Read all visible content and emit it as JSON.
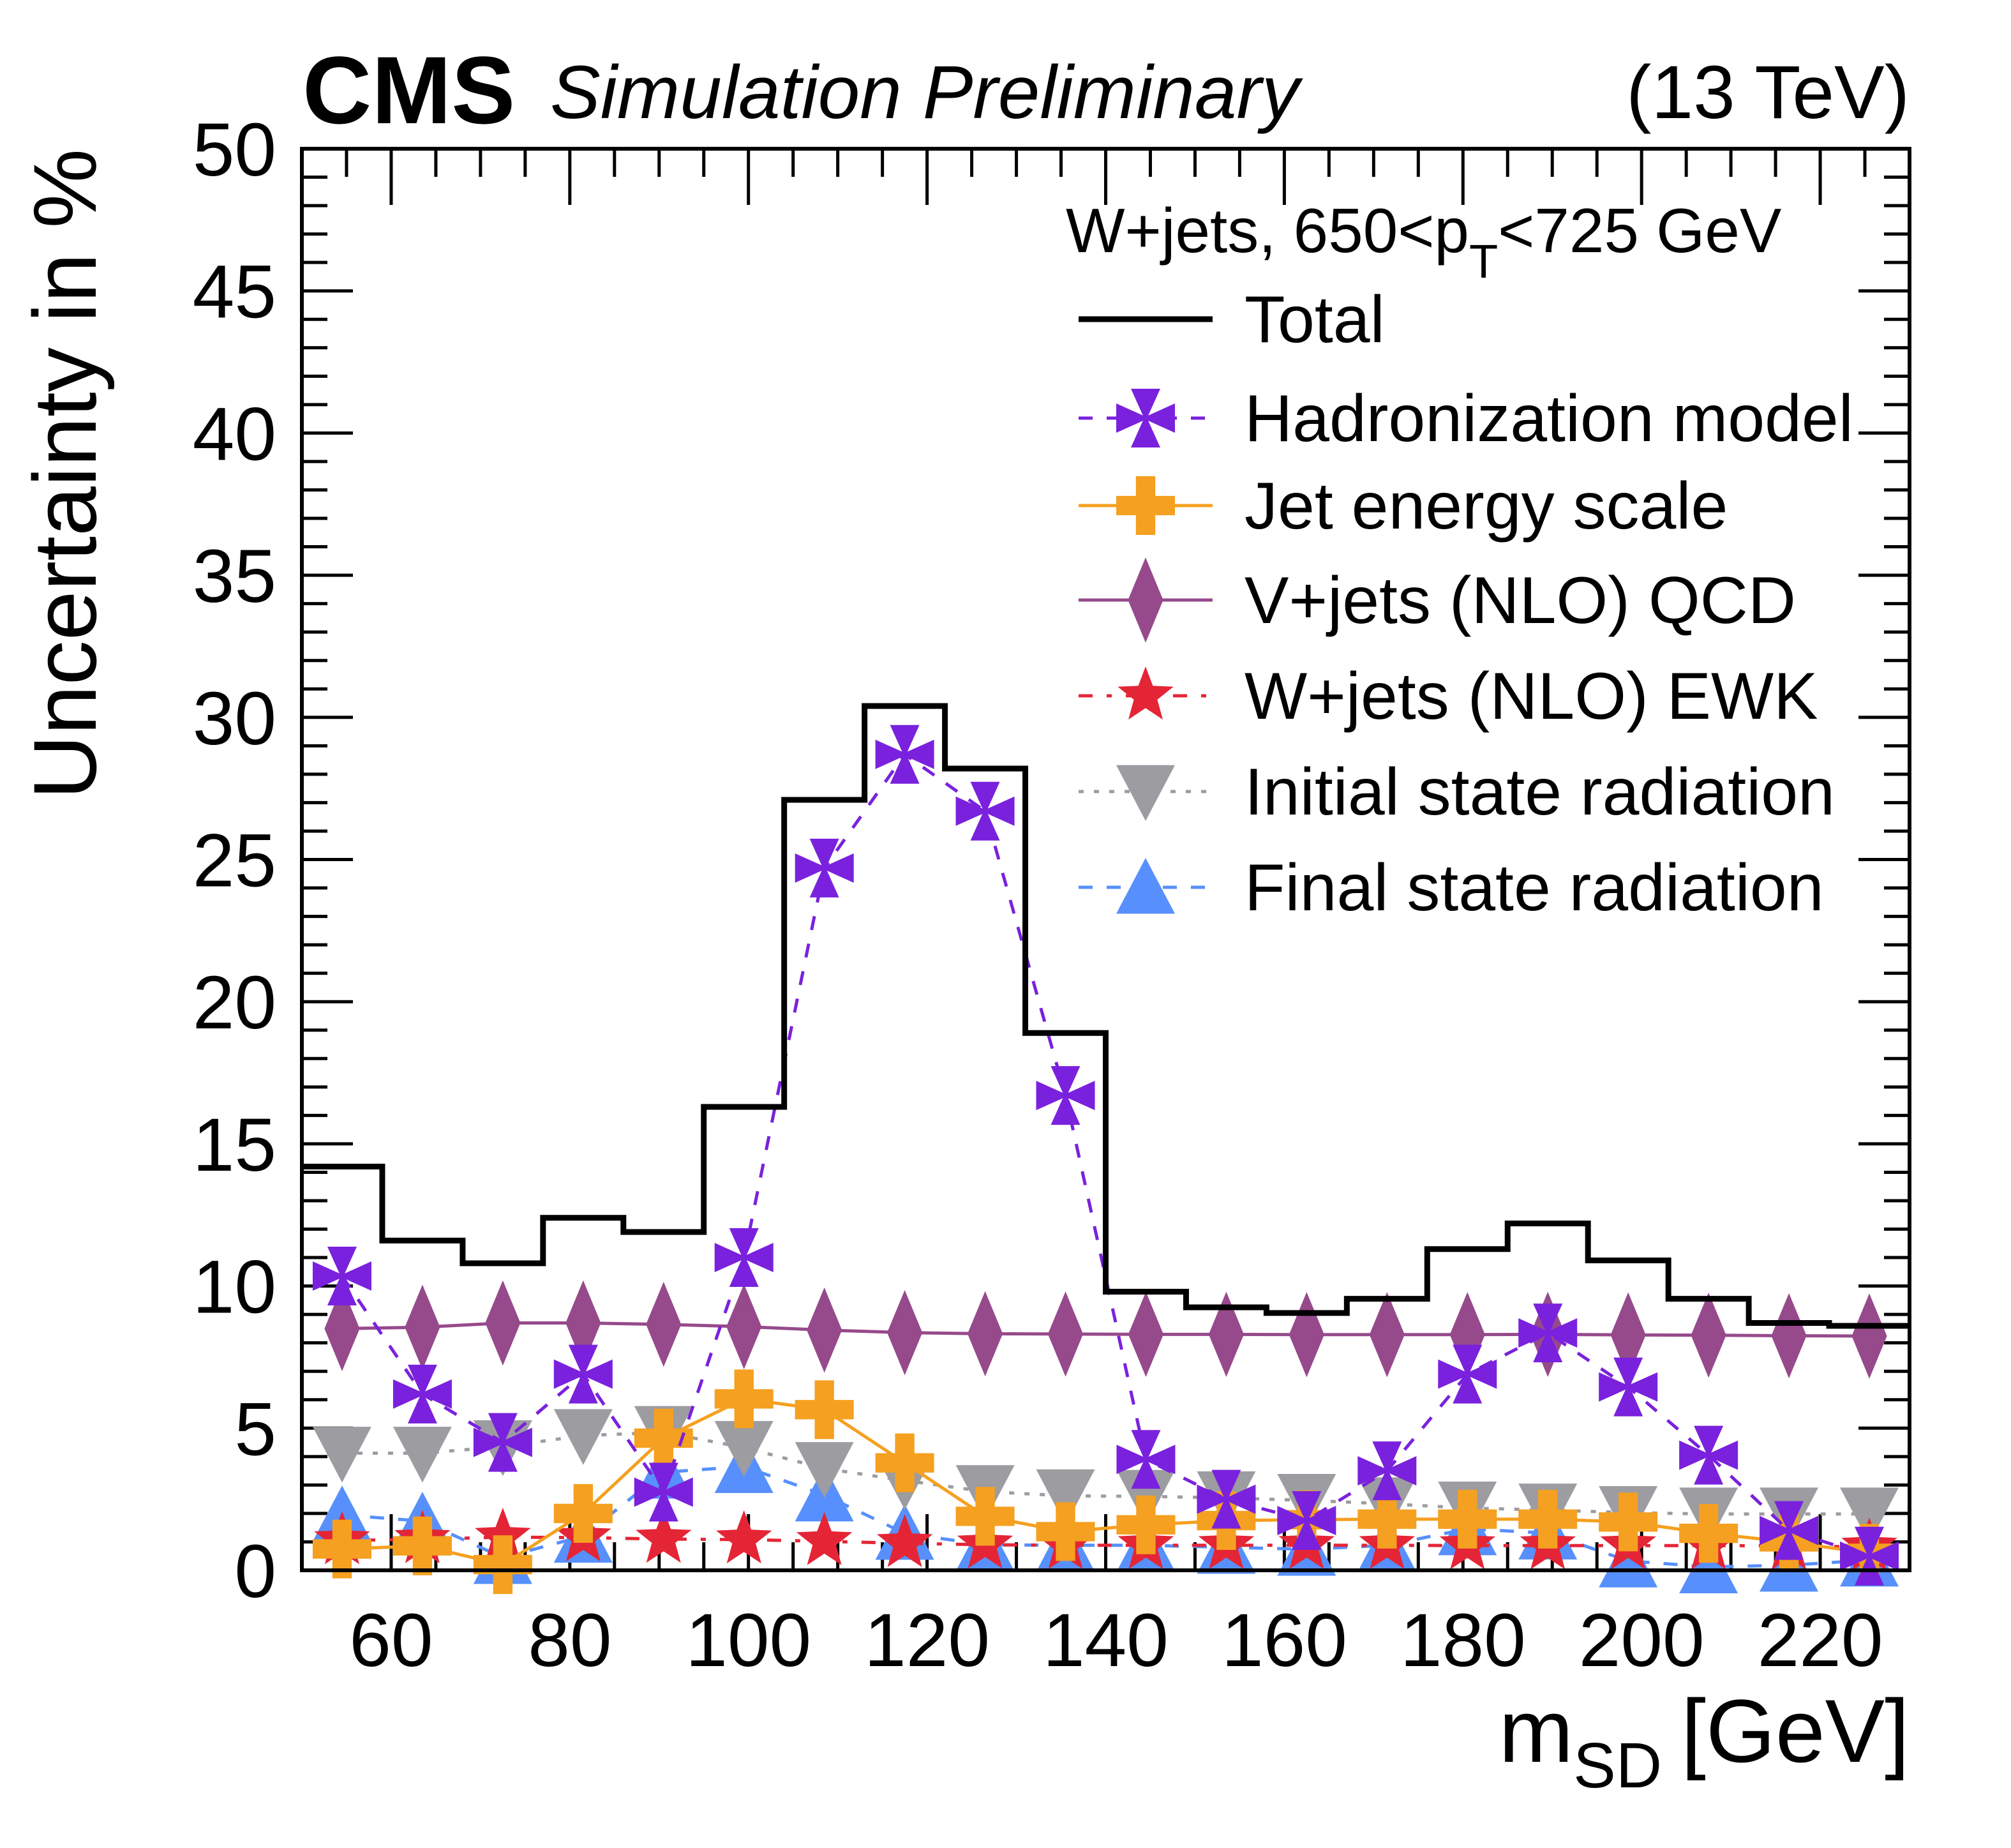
{
  "header": {
    "experiment": "CMS",
    "status": "Simulation Preliminary",
    "energy": "(13 TeV)"
  },
  "chart_data": {
    "type": "line",
    "title": "CMS Simulation Preliminary (13 TeV)",
    "xlabel": "m_SD [GeV]",
    "xlabel_main": "m",
    "xlabel_sub": "SD",
    "xlabel_unit": "[GeV]",
    "ylabel": "Uncertainty in %",
    "xlim": [
      50,
      230
    ],
    "ylim": [
      0,
      50
    ],
    "xticks": [
      60,
      80,
      100,
      120,
      140,
      160,
      180,
      200,
      220
    ],
    "yticks": [
      0,
      5,
      10,
      15,
      20,
      25,
      30,
      35,
      40,
      45,
      50
    ],
    "grid": false,
    "legend_position": "top-right",
    "legend_header": {
      "text_before": "W+jets, 650<p",
      "subscript": "T",
      "text_after": "<725 GeV"
    },
    "bin_edges": [
      50,
      59,
      68,
      77,
      86,
      95,
      104,
      113,
      122,
      131,
      140,
      149,
      158,
      167,
      176,
      185,
      194,
      203,
      212,
      221,
      230
    ],
    "x": [
      54.5,
      63.5,
      72.5,
      81.5,
      90.5,
      99.5,
      108.5,
      117.5,
      126.5,
      135.5,
      144.5,
      153.5,
      162.5,
      171.5,
      180.5,
      189.5,
      198.5,
      207.5,
      216.5,
      225.5
    ],
    "series": [
      {
        "name": "Total",
        "style": "histogram",
        "color": "#000000",
        "marker": "none",
        "line": "solid",
        "values": [
          14.2,
          11.6,
          10.8,
          12.4,
          11.9,
          16.3,
          27.1,
          30.4,
          28.2,
          18.9,
          9.8,
          9.25,
          9.05,
          9.55,
          11.3,
          12.2,
          10.9,
          9.55,
          8.7,
          8.6
        ]
      },
      {
        "name": "Hadronization model",
        "style": "markers+line",
        "color": "#7a21dd",
        "marker": "cross-x",
        "line": "dashed",
        "values": [
          10.35,
          6.2,
          4.5,
          6.9,
          2.75,
          11.0,
          24.7,
          28.7,
          26.7,
          16.7,
          3.9,
          2.5,
          1.75,
          3.5,
          6.9,
          8.35,
          6.45,
          4.05,
          1.4,
          0.5
        ]
      },
      {
        "name": "Jet energy scale",
        "style": "markers+line",
        "color": "#f5a020",
        "marker": "plus",
        "line": "solid",
        "values": [
          0.75,
          0.86,
          0.2,
          2.0,
          4.65,
          6.03,
          5.65,
          3.78,
          1.9,
          1.36,
          1.6,
          1.75,
          1.78,
          1.8,
          1.8,
          1.8,
          1.7,
          1.3,
          1.0,
          0.6
        ]
      },
      {
        "name": "V+jets (NLO) QCD",
        "style": "markers+line",
        "color": "#964a8b",
        "marker": "diamond",
        "line": "solid",
        "values": [
          8.5,
          8.55,
          8.7,
          8.7,
          8.65,
          8.57,
          8.45,
          8.36,
          8.32,
          8.31,
          8.3,
          8.3,
          8.29,
          8.29,
          8.29,
          8.3,
          8.28,
          8.27,
          8.25,
          8.24
        ]
      },
      {
        "name": "W+jets (NLO) EWK",
        "style": "markers+line",
        "color": "#e42536",
        "marker": "star",
        "line": "dash-dot",
        "values": [
          1.05,
          1.09,
          1.17,
          1.15,
          1.1,
          1.08,
          1.02,
          0.95,
          0.9,
          0.88,
          0.88,
          0.88,
          0.88,
          0.88,
          0.87,
          0.87,
          0.87,
          0.87,
          0.86,
          0.82
        ]
      },
      {
        "name": "Initial state radiation",
        "style": "markers+line",
        "color": "#9c9ca1",
        "marker": "triangle-down",
        "line": "dotted",
        "values": [
          4.12,
          4.12,
          4.35,
          4.74,
          4.85,
          4.32,
          3.58,
          3.16,
          2.77,
          2.62,
          2.6,
          2.55,
          2.46,
          2.34,
          2.19,
          2.12,
          2.03,
          1.98,
          1.98,
          1.98
        ]
      },
      {
        "name": "Final state radiation",
        "style": "markers+line",
        "color": "#5790fc",
        "marker": "triangle-up",
        "line": "dashed",
        "values": [
          1.95,
          1.73,
          0.45,
          1.2,
          3.45,
          3.65,
          2.65,
          1.3,
          0.9,
          0.88,
          0.88,
          0.81,
          0.74,
          0.88,
          1.46,
          1.31,
          0.33,
          0.12,
          0.18,
          0.36
        ]
      }
    ]
  }
}
